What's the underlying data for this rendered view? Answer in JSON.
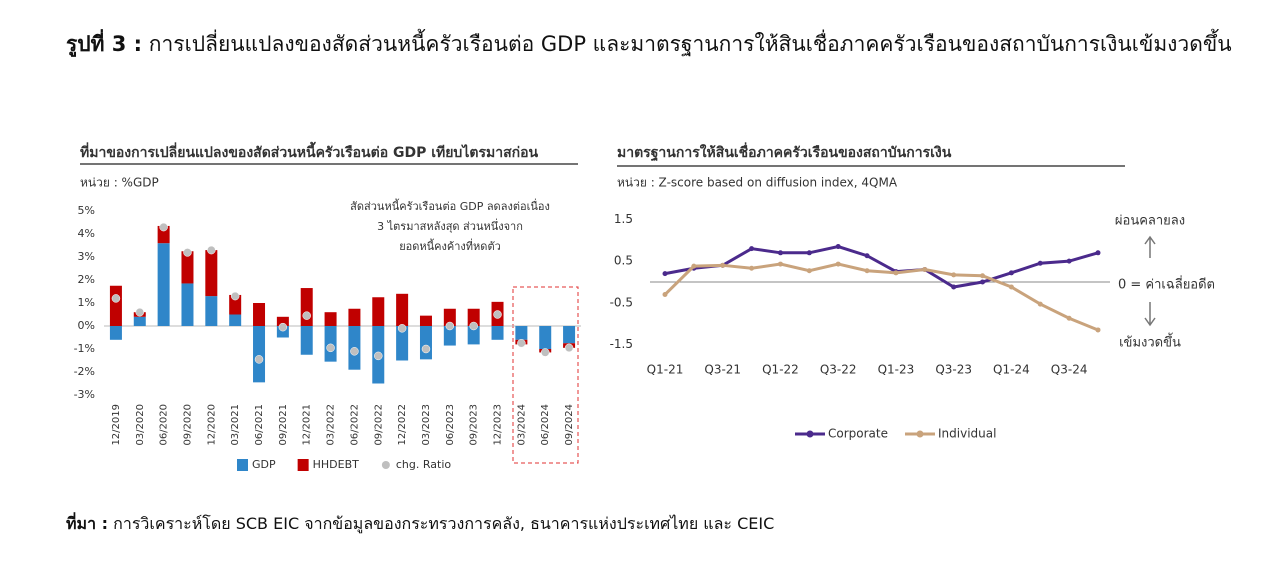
{
  "figure_label": "รูปที่ 3 :",
  "figure_title": "การเปลี่ยนแปลงของสัดส่วนหนี้ครัวเรือนต่อ GDP และมาตรฐานการให้สินเชื่อภาคครัวเรือนของสถาบันการเงินเข้มงวดขึ้น",
  "source_label": "ที่มา :",
  "source": "การวิเคราะห์โดย SCB EIC จากข้อมูลของกระทรวงการคลัง, ธนาคารแห่งประเทศไทย และ CEIC",
  "chart_data": [
    {
      "type": "bar",
      "stacked": true,
      "title": "ที่มาของการเปลี่ยนแปลงของสัดส่วนหนี้ครัวเรือนต่อ GDP เทียบไตรมาสก่อน",
      "subtitle": "หน่วย : %GDP",
      "annotations": [
        "สัดส่วนหนี้ครัวเรือนต่อ GDP ลดลงต่อเนื่อง",
        "3 ไตรมาสหลังสุด ส่วนหนึ่งจาก",
        "ยอดหนี้คงค้างที่หดตัว"
      ],
      "categories": [
        "12/2019",
        "03/2020",
        "06/2020",
        "09/2020",
        "12/2020",
        "03/2021",
        "06/2021",
        "09/2021",
        "12/2021",
        "03/2022",
        "06/2022",
        "09/2022",
        "12/2022",
        "03/2023",
        "06/2023",
        "09/2023",
        "12/2023",
        "03/2024",
        "06/2024",
        "09/2024"
      ],
      "series": [
        {
          "name": "GDP",
          "color": "#2f86c9",
          "values": [
            -0.6,
            0.4,
            3.6,
            1.85,
            1.3,
            0.5,
            -2.45,
            -0.5,
            -1.25,
            -1.55,
            -1.9,
            -2.5,
            -1.5,
            -1.45,
            -0.85,
            -0.8,
            -0.6,
            -0.6,
            -1.0,
            -0.75
          ]
        },
        {
          "name": "HHDEBT",
          "color": "#c00000",
          "values": [
            1.75,
            0.2,
            0.75,
            1.4,
            2.0,
            0.85,
            1.0,
            0.4,
            1.65,
            0.6,
            0.75,
            1.25,
            1.4,
            0.45,
            0.75,
            0.75,
            1.05,
            -0.2,
            -0.15,
            -0.2
          ]
        },
        {
          "name": "chg. Ratio",
          "color": "#bfbfbf",
          "type": "scatter",
          "values": [
            1.2,
            0.6,
            4.3,
            3.2,
            3.3,
            1.3,
            -1.45,
            -0.05,
            0.45,
            -0.95,
            -1.1,
            -1.3,
            -0.1,
            -1.0,
            0,
            0,
            0.5,
            -0.75,
            -1.15,
            -0.95
          ]
        }
      ],
      "ylim": [
        -3,
        5
      ],
      "yticks": [
        {
          "value": -3,
          "label": "-3%"
        },
        {
          "value": -2,
          "label": "-2%"
        },
        {
          "value": -1,
          "label": "-1%"
        },
        {
          "value": 0,
          "label": "0%"
        },
        {
          "value": 1,
          "label": "1%"
        },
        {
          "value": 2,
          "label": "2%"
        },
        {
          "value": 3,
          "label": "3%"
        },
        {
          "value": 4,
          "label": "4%"
        },
        {
          "value": 5,
          "label": "5%"
        }
      ]
    },
    {
      "type": "line",
      "title": "มาตรฐานการให้สินเชื่อภาคครัวเรือนของสถาบันการเงิน",
      "subtitle": "หน่วย : Z-score based on diffusion index, 4QMA",
      "annotations": [
        "ผ่อนคลายลง",
        "0 = ค่าเฉลี่ยอดีต",
        "เข้มงวดขึ้น"
      ],
      "categories": [
        "Q1-21",
        null,
        "Q3-21",
        null,
        "Q1-22",
        null,
        "Q3-22",
        null,
        "Q1-23",
        null,
        "Q3-23",
        null,
        "Q1-24",
        null,
        "Q3-24",
        null
      ],
      "series": [
        {
          "name": "Corporate",
          "color": "#4b2a8c",
          "values": [
            0.2,
            0.33,
            0.4,
            0.8,
            0.7,
            0.7,
            0.85,
            0.63,
            0.25,
            0.3,
            -0.12,
            0.0,
            0.22,
            0.45,
            0.5,
            0.7
          ]
        },
        {
          "name": "Individual",
          "color": "#c9a37c",
          "values": [
            -0.3,
            0.38,
            0.4,
            0.33,
            0.43,
            0.27,
            0.43,
            0.27,
            0.22,
            0.3,
            0.17,
            0.15,
            -0.12,
            -0.53,
            -0.87,
            -1.15
          ]
        }
      ],
      "ylim": [
        -2,
        2
      ],
      "yticks": [
        -1.5,
        -0.5,
        0.5,
        1.5
      ]
    }
  ]
}
